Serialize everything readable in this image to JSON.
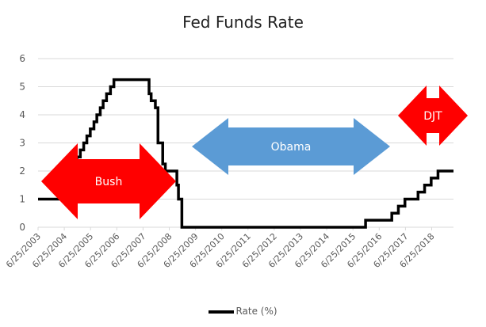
{
  "chart_data": {
    "type": "line",
    "title": "Fed Funds Rate",
    "xlabel": "",
    "ylabel": "",
    "ylim": [
      0,
      6
    ],
    "yticks": [
      0,
      1,
      2,
      3,
      4,
      5,
      6
    ],
    "grid": true,
    "legend_position": "bottom",
    "categories": [
      "6/25/2003",
      "6/25/2004",
      "6/25/2005",
      "6/25/2006",
      "6/25/2007",
      "6/25/2008",
      "6/25/2009",
      "6/25/2010",
      "6/25/2011",
      "6/25/2012",
      "6/25/2013",
      "6/25/2014",
      "6/25/2015",
      "6/25/2016",
      "6/25/2017",
      "6/25/2018"
    ],
    "series": [
      {
        "name": "Rate (%)",
        "step": true,
        "x": [
          2003.48,
          2004.5,
          2004.61,
          2004.72,
          2004.8,
          2004.87,
          2004.96,
          2005.09,
          2005.22,
          2005.34,
          2005.47,
          2005.61,
          2005.72,
          2005.85,
          2005.96,
          2006.09,
          2006.24,
          2006.37,
          2006.48,
          2007.71,
          2007.79,
          2007.95,
          2008.05,
          2008.09,
          2008.23,
          2008.33,
          2008.77,
          2008.83,
          2008.96,
          2015.96,
          2016.96,
          2017.21,
          2017.46,
          2017.96,
          2018.21,
          2018.46,
          2018.72
        ],
        "values": [
          1.0,
          1.25,
          1.5,
          1.75,
          2.0,
          2.25,
          2.5,
          2.75,
          3.0,
          3.25,
          3.5,
          3.75,
          4.0,
          4.25,
          4.5,
          4.75,
          5.0,
          5.25,
          5.25,
          4.75,
          4.5,
          4.25,
          3.0,
          3.0,
          2.25,
          2.0,
          1.5,
          1.0,
          0.0,
          0.25,
          0.5,
          0.75,
          1.0,
          1.25,
          1.5,
          1.75,
          2.0
        ]
      }
    ],
    "annotations": [
      {
        "label": "Bush",
        "shape": "double-arrow-horizontal",
        "color": "#ff0000",
        "y_center_value": 1.55
      },
      {
        "label": "Obama",
        "shape": "double-arrow-horizontal",
        "color": "#5b9bd5",
        "y_center_value": 2.85
      },
      {
        "label": "DJT",
        "shape": "double-arrow-horizontal",
        "color": "#ff0000",
        "y_center_value": 4.0
      }
    ]
  },
  "legend": {
    "label": "Rate (%)"
  }
}
